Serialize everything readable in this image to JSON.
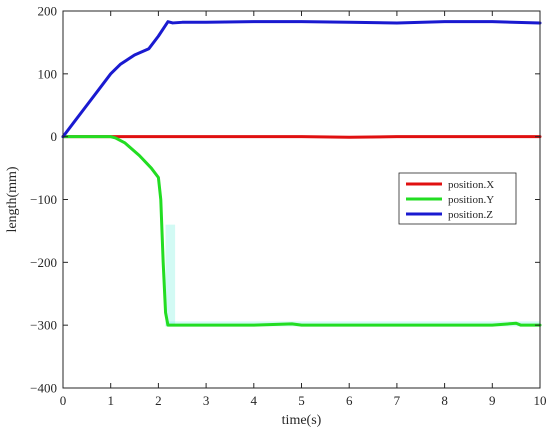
{
  "chart_data": {
    "type": "line",
    "title": "",
    "xlabel": "time(s)",
    "ylabel": "length(mm)",
    "xlim": [
      0,
      10
    ],
    "ylim": [
      -400,
      200
    ],
    "xticks": [
      0,
      1,
      2,
      3,
      4,
      5,
      6,
      7,
      8,
      9,
      10
    ],
    "xtick_labels": [
      "0",
      "1",
      "2",
      "3",
      "4",
      "5",
      "6",
      "7",
      "8",
      "9",
      "10"
    ],
    "yticks": [
      -400,
      -300,
      -200,
      -100,
      0,
      100,
      200
    ],
    "ytick_labels": [
      "−400",
      "−300",
      "−200",
      "−100",
      "0",
      "100",
      "200"
    ],
    "grid": false,
    "legend_position": "right",
    "series": [
      {
        "name": "position.X",
        "color": "#e01010",
        "x": [
          0,
          1,
          2,
          3,
          4,
          5,
          6,
          7,
          8,
          9,
          10
        ],
        "y": [
          0,
          0,
          0,
          0,
          0,
          0,
          -1,
          0,
          0,
          0,
          0
        ]
      },
      {
        "name": "position.Y",
        "color": "#22dd22",
        "x": [
          0,
          0.5,
          1.0,
          1.1,
          1.3,
          1.6,
          1.85,
          2.0,
          2.05,
          2.1,
          2.15,
          2.2,
          2.4,
          3,
          4,
          4.8,
          5,
          6,
          7,
          8,
          9,
          9.5,
          9.6,
          10
        ],
        "y": [
          0,
          0,
          0,
          -2,
          -10,
          -30,
          -50,
          -65,
          -100,
          -200,
          -280,
          -300,
          -300,
          -300,
          -300,
          -298,
          -300,
          -300,
          -300,
          -300,
          -300,
          -297,
          -300,
          -300
        ]
      },
      {
        "name": "position.Z",
        "color": "#1a1ad0",
        "x": [
          0,
          0.25,
          0.5,
          0.75,
          1.0,
          1.2,
          1.5,
          1.8,
          2.0,
          2.2,
          2.3,
          2.5,
          3,
          4,
          5,
          6,
          7,
          8,
          9,
          10
        ],
        "y": [
          0,
          25,
          50,
          75,
          100,
          115,
          130,
          140,
          160,
          183,
          181,
          182,
          182,
          183,
          183,
          182,
          181,
          183,
          183,
          181
        ]
      }
    ]
  }
}
